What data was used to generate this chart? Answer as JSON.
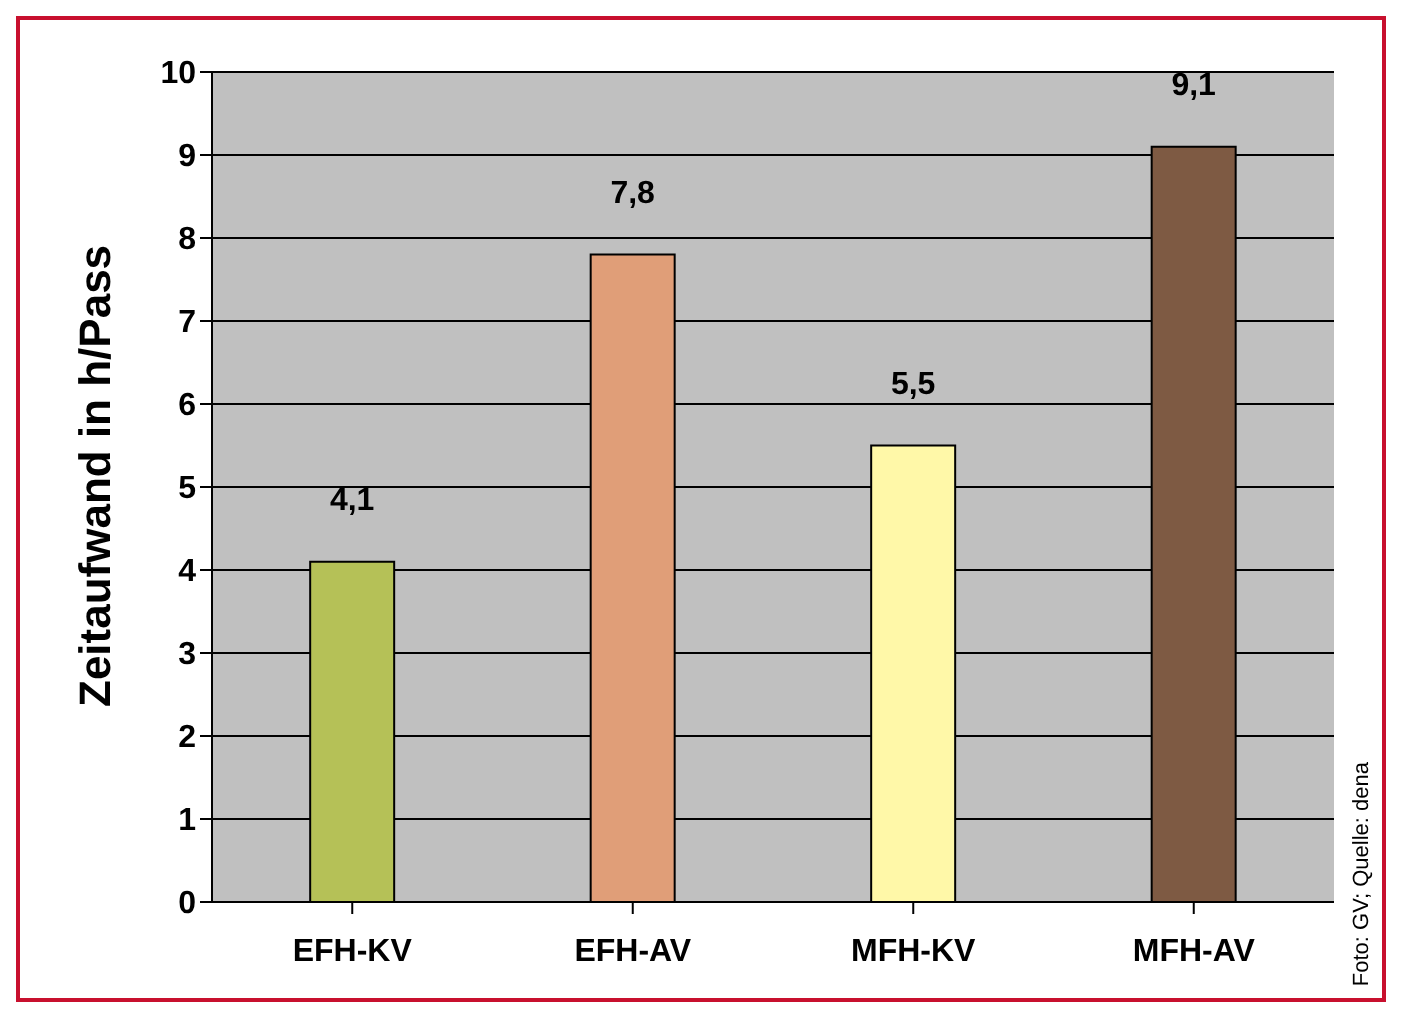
{
  "chart_data": {
    "type": "bar",
    "ylabel": "Zeitaufwand in h/Pass",
    "categories": [
      "EFH-KV",
      "EFH-AV",
      "MFH-KV",
      "MFH-AV"
    ],
    "values": [
      4.1,
      7.8,
      5.5,
      9.1
    ],
    "colors": [
      "#b5c157",
      "#e09e78",
      "#fff8a8",
      "#7e5a43"
    ],
    "value_labels": [
      "4,1",
      "7,8",
      "5,5",
      "9,1"
    ],
    "ylim": [
      0,
      10
    ],
    "yticks": [
      0,
      1,
      2,
      3,
      4,
      5,
      6,
      7,
      8,
      9,
      10
    ],
    "grid": "y",
    "annotations": [
      "Foto: GV; Quelle: dena"
    ]
  }
}
